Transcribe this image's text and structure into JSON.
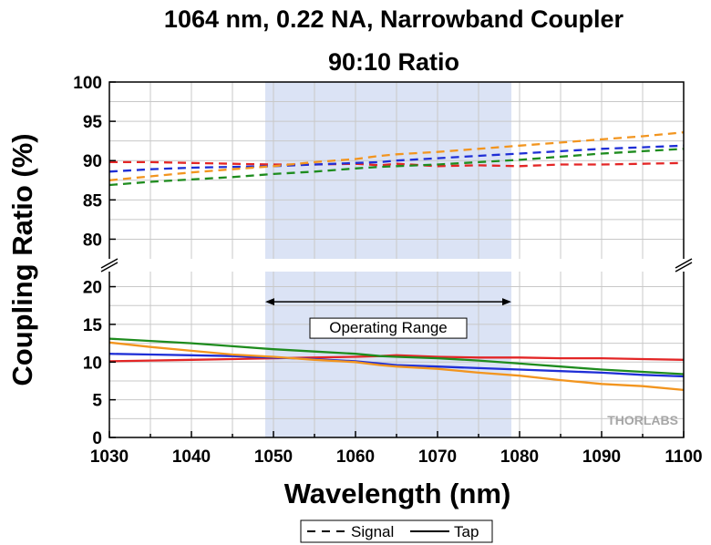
{
  "chart_data": {
    "type": "line",
    "title": "1064 nm, 0.22 NA, Narrowband Coupler",
    "subtitle": "90:10 Ratio",
    "xlabel": "Wavelength (nm)",
    "ylabel": "Coupling Ratio (%)",
    "xlim": [
      1030,
      1100
    ],
    "x_ticks": [
      "1030",
      "1040",
      "1050",
      "1060",
      "1070",
      "1080",
      "1090",
      "1100"
    ],
    "y_ticks_upper": [
      "80",
      "85",
      "90",
      "95",
      "100"
    ],
    "y_ticks_lower": [
      "0",
      "5",
      "10",
      "15",
      "20"
    ],
    "ylim_upper": [
      77.5,
      100
    ],
    "ylim_lower": [
      0,
      22
    ],
    "axis_break": true,
    "grid": true,
    "shaded_region": {
      "x": [
        1049,
        1079
      ],
      "color": "#dbe3f5"
    },
    "annotation": {
      "text": "Operating Range",
      "x": [
        1049,
        1079
      ],
      "y": 18
    },
    "legend": {
      "position": "bottom",
      "entries": [
        "Signal",
        "Tap"
      ]
    },
    "watermark": "THORLABS",
    "x": [
      1030,
      1035,
      1040,
      1045,
      1050,
      1055,
      1060,
      1063,
      1065,
      1070,
      1075,
      1080,
      1085,
      1090,
      1095,
      1100
    ],
    "series": [
      {
        "color": "#e32626",
        "style": "dashed",
        "values": [
          89.8,
          89.8,
          89.7,
          89.6,
          89.5,
          89.5,
          89.6,
          89.4,
          89.6,
          89.3,
          89.4,
          89.3,
          89.5,
          89.5,
          89.6,
          89.7
        ]
      },
      {
        "color": "#1f2fd6",
        "style": "dashed",
        "values": [
          88.6,
          88.9,
          89.1,
          89.2,
          89.3,
          89.5,
          89.7,
          89.8,
          90.0,
          90.3,
          90.6,
          90.9,
          91.2,
          91.5,
          91.7,
          91.9
        ]
      },
      {
        "color": "#1e8c1e",
        "style": "dashed",
        "values": [
          86.9,
          87.3,
          87.6,
          87.9,
          88.3,
          88.6,
          89.0,
          89.2,
          89.3,
          89.5,
          89.8,
          90.1,
          90.5,
          90.9,
          91.2,
          91.5
        ]
      },
      {
        "color": "#f2951f",
        "style": "dashed",
        "values": [
          87.5,
          88.0,
          88.5,
          88.9,
          89.3,
          89.8,
          90.2,
          90.6,
          90.8,
          91.1,
          91.5,
          91.9,
          92.3,
          92.7,
          93.1,
          93.6
        ]
      },
      {
        "color": "#e32626",
        "style": "solid",
        "values": [
          10.1,
          10.2,
          10.3,
          10.4,
          10.5,
          10.6,
          10.7,
          10.8,
          10.9,
          10.7,
          10.6,
          10.6,
          10.5,
          10.5,
          10.4,
          10.3
        ]
      },
      {
        "color": "#1f2fd6",
        "style": "solid",
        "values": [
          11.1,
          11.0,
          10.9,
          10.8,
          10.6,
          10.4,
          10.1,
          9.8,
          9.6,
          9.4,
          9.2,
          9.0,
          8.8,
          8.6,
          8.3,
          8.1
        ]
      },
      {
        "color": "#1e8c1e",
        "style": "solid",
        "values": [
          13.1,
          12.8,
          12.5,
          12.1,
          11.7,
          11.4,
          11.1,
          10.8,
          10.7,
          10.5,
          10.2,
          9.8,
          9.4,
          9.0,
          8.7,
          8.4
        ]
      },
      {
        "color": "#f2951f",
        "style": "solid",
        "values": [
          12.6,
          12.0,
          11.5,
          11.0,
          10.7,
          10.3,
          10.0,
          9.6,
          9.4,
          9.1,
          8.6,
          8.2,
          7.6,
          7.1,
          6.8,
          6.3
        ]
      }
    ]
  }
}
